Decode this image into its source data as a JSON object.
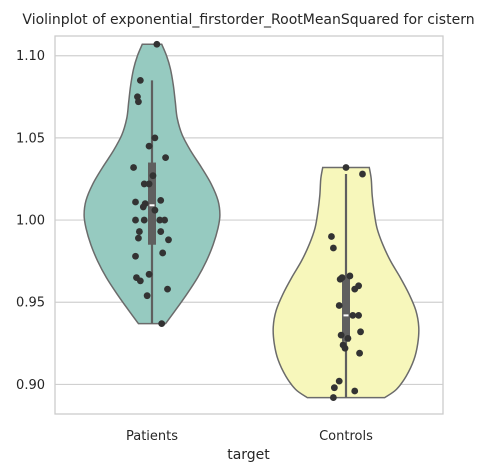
{
  "chart_data": {
    "type": "violin",
    "title": "Violinplot of exponential_firstorder_RootMeanSquared for cistern",
    "xlabel": "target",
    "ylabel": "",
    "categories": [
      "Patients",
      "Controls"
    ],
    "ylim": [
      0.882,
      1.112
    ],
    "yticks": [
      0.9,
      0.95,
      1.0,
      1.05,
      1.1
    ],
    "ytick_labels": [
      "0.90",
      "0.95",
      "1.00",
      "1.05",
      "1.10"
    ],
    "grid": "horizontal",
    "colors": {
      "Patients": "#96cac0",
      "Controls": "#f7f7bb",
      "outline": "#6b6b6b",
      "points": "#333333",
      "box": "#5f5f5f",
      "grid": "#d0d0d0",
      "frame": "#cccccc"
    },
    "violins": [
      {
        "category": "Patients",
        "range": [
          0.937,
          1.107
        ],
        "box": {
          "whisker_low": 0.937,
          "q1": 0.985,
          "median": 1.009,
          "q3": 1.035,
          "whisker_high": 1.085
        },
        "profile": [
          {
            "y": 0.937,
            "w": 0.14
          },
          {
            "y": 0.945,
            "w": 0.24
          },
          {
            "y": 0.955,
            "w": 0.36
          },
          {
            "y": 0.965,
            "w": 0.47
          },
          {
            "y": 0.975,
            "w": 0.56
          },
          {
            "y": 0.985,
            "w": 0.63
          },
          {
            "y": 0.995,
            "w": 0.68
          },
          {
            "y": 1.003,
            "w": 0.7
          },
          {
            "y": 1.012,
            "w": 0.68
          },
          {
            "y": 1.022,
            "w": 0.61
          },
          {
            "y": 1.032,
            "w": 0.51
          },
          {
            "y": 1.042,
            "w": 0.4
          },
          {
            "y": 1.052,
            "w": 0.31
          },
          {
            "y": 1.062,
            "w": 0.26
          },
          {
            "y": 1.072,
            "w": 0.24
          },
          {
            "y": 1.082,
            "w": 0.22
          },
          {
            "y": 1.092,
            "w": 0.19
          },
          {
            "y": 1.1,
            "w": 0.15
          },
          {
            "y": 1.107,
            "w": 0.1
          }
        ],
        "points": [
          {
            "x": 0.05,
            "y": 1.107
          },
          {
            "x": -0.12,
            "y": 1.085
          },
          {
            "x": -0.15,
            "y": 1.075
          },
          {
            "x": -0.14,
            "y": 1.072
          },
          {
            "x": 0.03,
            "y": 1.05
          },
          {
            "x": -0.03,
            "y": 1.045
          },
          {
            "x": 0.14,
            "y": 1.038
          },
          {
            "x": -0.19,
            "y": 1.032
          },
          {
            "x": 0.01,
            "y": 1.027
          },
          {
            "x": -0.08,
            "y": 1.022
          },
          {
            "x": -0.03,
            "y": 1.022
          },
          {
            "x": 0.09,
            "y": 1.012
          },
          {
            "x": -0.17,
            "y": 1.011
          },
          {
            "x": -0.07,
            "y": 1.01
          },
          {
            "x": -0.09,
            "y": 1.008
          },
          {
            "x": 0.03,
            "y": 1.006
          },
          {
            "x": -0.17,
            "y": 1.0
          },
          {
            "x": -0.08,
            "y": 1.0
          },
          {
            "x": 0.08,
            "y": 1.0
          },
          {
            "x": 0.13,
            "y": 1.0
          },
          {
            "x": -0.13,
            "y": 0.993
          },
          {
            "x": 0.09,
            "y": 0.993
          },
          {
            "x": -0.14,
            "y": 0.989
          },
          {
            "x": 0.17,
            "y": 0.988
          },
          {
            "x": 0.11,
            "y": 0.98
          },
          {
            "x": -0.17,
            "y": 0.978
          },
          {
            "x": -0.03,
            "y": 0.967
          },
          {
            "x": -0.16,
            "y": 0.965
          },
          {
            "x": -0.12,
            "y": 0.963
          },
          {
            "x": 0.16,
            "y": 0.958
          },
          {
            "x": -0.05,
            "y": 0.954
          },
          {
            "x": 0.1,
            "y": 0.937
          }
        ]
      },
      {
        "category": "Controls",
        "range": [
          0.892,
          1.032
        ],
        "box": {
          "whisker_low": 0.892,
          "q1": 0.926,
          "median": 0.942,
          "q3": 0.966,
          "whisker_high": 1.028
        },
        "profile": [
          {
            "y": 0.892,
            "w": 0.4
          },
          {
            "y": 0.897,
            "w": 0.52
          },
          {
            "y": 0.905,
            "w": 0.62
          },
          {
            "y": 0.915,
            "w": 0.7
          },
          {
            "y": 0.925,
            "w": 0.74
          },
          {
            "y": 0.935,
            "w": 0.75
          },
          {
            "y": 0.945,
            "w": 0.72
          },
          {
            "y": 0.955,
            "w": 0.65
          },
          {
            "y": 0.965,
            "w": 0.56
          },
          {
            "y": 0.975,
            "w": 0.46
          },
          {
            "y": 0.985,
            "w": 0.38
          },
          {
            "y": 0.995,
            "w": 0.32
          },
          {
            "y": 1.005,
            "w": 0.29
          },
          {
            "y": 1.015,
            "w": 0.27
          },
          {
            "y": 1.025,
            "w": 0.26
          },
          {
            "y": 1.032,
            "w": 0.24
          }
        ],
        "points": [
          {
            "x": 0.0,
            "y": 1.032
          },
          {
            "x": 0.17,
            "y": 1.028
          },
          {
            "x": -0.15,
            "y": 0.99
          },
          {
            "x": -0.13,
            "y": 0.983
          },
          {
            "x": 0.04,
            "y": 0.966
          },
          {
            "x": -0.04,
            "y": 0.965
          },
          {
            "x": -0.06,
            "y": 0.964
          },
          {
            "x": 0.13,
            "y": 0.96
          },
          {
            "x": 0.09,
            "y": 0.958
          },
          {
            "x": -0.07,
            "y": 0.948
          },
          {
            "x": 0.07,
            "y": 0.942
          },
          {
            "x": 0.13,
            "y": 0.942
          },
          {
            "x": 0.15,
            "y": 0.932
          },
          {
            "x": -0.05,
            "y": 0.93
          },
          {
            "x": 0.02,
            "y": 0.928
          },
          {
            "x": -0.03,
            "y": 0.924
          },
          {
            "x": -0.01,
            "y": 0.922
          },
          {
            "x": 0.14,
            "y": 0.919
          },
          {
            "x": -0.07,
            "y": 0.902
          },
          {
            "x": -0.12,
            "y": 0.898
          },
          {
            "x": 0.09,
            "y": 0.896
          },
          {
            "x": -0.13,
            "y": 0.892
          }
        ]
      }
    ]
  }
}
